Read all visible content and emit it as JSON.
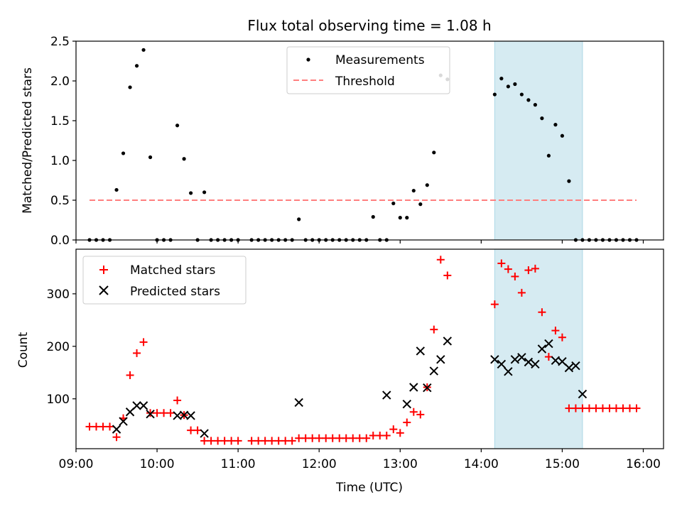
{
  "title": "Flux total observing time = 1.08 h",
  "xlabel": "Time (UTC)",
  "colors": {
    "measurements": "#000000",
    "threshold": "#ff7f7f",
    "matched": "#ff0000",
    "predicted": "#000000",
    "highlight": "#add8e6"
  },
  "chart_data": [
    {
      "type": "scatter",
      "ylabel": "Matched/Predicted stars",
      "ylim": [
        0,
        2.5
      ],
      "yticks": [
        0.0,
        0.5,
        1.0,
        1.5,
        2.0,
        2.5
      ],
      "ytick_labels": [
        "0.0",
        "0.5",
        "1.0",
        "1.5",
        "2.0",
        "2.5"
      ],
      "xlim": [
        "09:00",
        "16:15"
      ],
      "xticks": [
        "09:00",
        "10:00",
        "11:00",
        "12:00",
        "13:00",
        "14:00",
        "15:00",
        "16:00"
      ],
      "grid": false,
      "legend_position": "upper center",
      "highlight_span": [
        "14:10",
        "15:15"
      ],
      "series": [
        {
          "name": "Measurements",
          "marker": "dot",
          "x": [
            "09:10",
            "09:15",
            "09:20",
            "09:25",
            "09:30",
            "09:35",
            "09:40",
            "09:45",
            "09:50",
            "09:55",
            "10:00",
            "10:05",
            "10:10",
            "10:15",
            "10:20",
            "10:25",
            "10:30",
            "10:35",
            "10:40",
            "10:45",
            "10:50",
            "10:55",
            "11:00",
            "11:10",
            "11:15",
            "11:20",
            "11:25",
            "11:30",
            "11:35",
            "11:40",
            "11:45",
            "11:50",
            "11:55",
            "12:00",
            "12:05",
            "12:10",
            "12:15",
            "12:20",
            "12:25",
            "12:30",
            "12:35",
            "12:40",
            "12:45",
            "12:50",
            "12:55",
            "13:00",
            "13:05",
            "13:10",
            "13:15",
            "13:20",
            "13:25",
            "13:30",
            "13:35",
            "14:10",
            "14:15",
            "14:20",
            "14:25",
            "14:30",
            "14:35",
            "14:40",
            "14:45",
            "14:50",
            "14:55",
            "15:00",
            "15:05",
            "15:10",
            "15:15",
            "15:20",
            "15:25",
            "15:30",
            "15:35",
            "15:40",
            "15:45",
            "15:50",
            "15:55"
          ],
          "y": [
            0,
            0,
            0,
            0,
            0.63,
            1.09,
            1.92,
            2.19,
            2.39,
            1.04,
            0,
            0,
            0,
            1.44,
            1.02,
            0.59,
            0,
            0.6,
            0,
            0,
            0,
            0,
            0,
            0,
            0,
            0,
            0,
            0,
            0,
            0,
            0.26,
            0,
            0,
            0,
            0,
            0,
            0,
            0,
            0,
            0,
            0,
            0.29,
            0,
            0,
            0.46,
            0.28,
            0.28,
            0.62,
            0.45,
            0.69,
            1.1,
            2.07,
            2.02,
            1.83,
            2.03,
            1.93,
            1.96,
            1.83,
            1.76,
            1.7,
            1.53,
            1.06,
            1.45,
            1.31,
            0.74,
            0,
            0,
            0,
            0,
            0,
            0,
            0,
            0,
            0,
            0
          ]
        },
        {
          "name": "Threshold",
          "style": "dashed",
          "x": [
            "09:10",
            "15:55"
          ],
          "y": [
            0.5,
            0.5
          ]
        }
      ]
    },
    {
      "type": "scatter",
      "ylabel": "Count",
      "ylim": [
        5,
        385
      ],
      "yticks": [
        100,
        200,
        300
      ],
      "ytick_labels": [
        "100",
        "200",
        "300"
      ],
      "xlim": [
        "09:00",
        "16:15"
      ],
      "xticks": [
        "09:00",
        "10:00",
        "11:00",
        "12:00",
        "13:00",
        "14:00",
        "15:00",
        "16:00"
      ],
      "xtick_labels": [
        "09:00",
        "10:00",
        "11:00",
        "12:00",
        "13:00",
        "14:00",
        "15:00",
        "16:00"
      ],
      "grid": false,
      "legend_position": "upper left",
      "highlight_span": [
        "14:10",
        "15:15"
      ],
      "series": [
        {
          "name": "Matched stars",
          "marker": "plus",
          "x": [
            "09:10",
            "09:15",
            "09:20",
            "09:25",
            "09:30",
            "09:35",
            "09:40",
            "09:45",
            "09:50",
            "09:55",
            "10:00",
            "10:05",
            "10:10",
            "10:15",
            "10:20",
            "10:25",
            "10:30",
            "10:35",
            "10:40",
            "10:45",
            "10:50",
            "10:55",
            "11:00",
            "11:10",
            "11:15",
            "11:20",
            "11:25",
            "11:30",
            "11:35",
            "11:40",
            "11:45",
            "11:50",
            "11:55",
            "12:00",
            "12:05",
            "12:10",
            "12:15",
            "12:20",
            "12:25",
            "12:30",
            "12:35",
            "12:40",
            "12:45",
            "12:50",
            "12:55",
            "13:00",
            "13:05",
            "13:10",
            "13:15",
            "13:20",
            "13:25",
            "13:30",
            "13:35",
            "14:10",
            "14:15",
            "14:20",
            "14:25",
            "14:30",
            "14:35",
            "14:40",
            "14:45",
            "14:50",
            "14:55",
            "15:00",
            "15:05",
            "15:10",
            "15:15",
            "15:20",
            "15:25",
            "15:30",
            "15:35",
            "15:40",
            "15:45",
            "15:50",
            "15:55"
          ],
          "y": [
            47,
            47,
            47,
            47,
            27,
            63,
            145,
            187,
            208,
            73,
            73,
            73,
            73,
            97,
            69,
            40,
            40,
            20,
            20,
            20,
            20,
            20,
            20,
            20,
            20,
            20,
            20,
            20,
            20,
            20,
            25,
            25,
            25,
            25,
            25,
            25,
            25,
            25,
            25,
            25,
            25,
            30,
            30,
            30,
            42,
            35,
            55,
            75,
            70,
            122,
            232,
            365,
            335,
            280,
            358,
            347,
            333,
            302,
            345,
            348,
            265,
            180,
            230,
            217,
            82,
            82,
            82,
            82,
            82,
            82,
            82,
            82,
            82,
            82,
            82
          ]
        },
        {
          "name": "Predicted stars",
          "marker": "x",
          "x": [
            "09:30",
            "09:35",
            "09:40",
            "09:45",
            "09:50",
            "09:55",
            "10:15",
            "10:20",
            "10:25",
            "10:35",
            "11:45",
            "12:50",
            "13:05",
            "13:10",
            "13:15",
            "13:20",
            "13:25",
            "13:30",
            "13:35",
            "14:10",
            "14:15",
            "14:20",
            "14:25",
            "14:30",
            "14:35",
            "14:40",
            "14:45",
            "14:50",
            "14:55",
            "15:00",
            "15:05",
            "15:10",
            "15:15"
          ],
          "y": [
            42,
            57,
            75,
            87,
            87,
            71,
            68,
            69,
            68,
            34,
            93,
            107,
            90,
            122,
            191,
            121,
            153,
            175,
            210,
            175,
            166,
            152,
            175,
            179,
            170,
            166,
            195,
            205,
            173,
            171,
            159,
            163,
            109
          ]
        }
      ]
    }
  ]
}
